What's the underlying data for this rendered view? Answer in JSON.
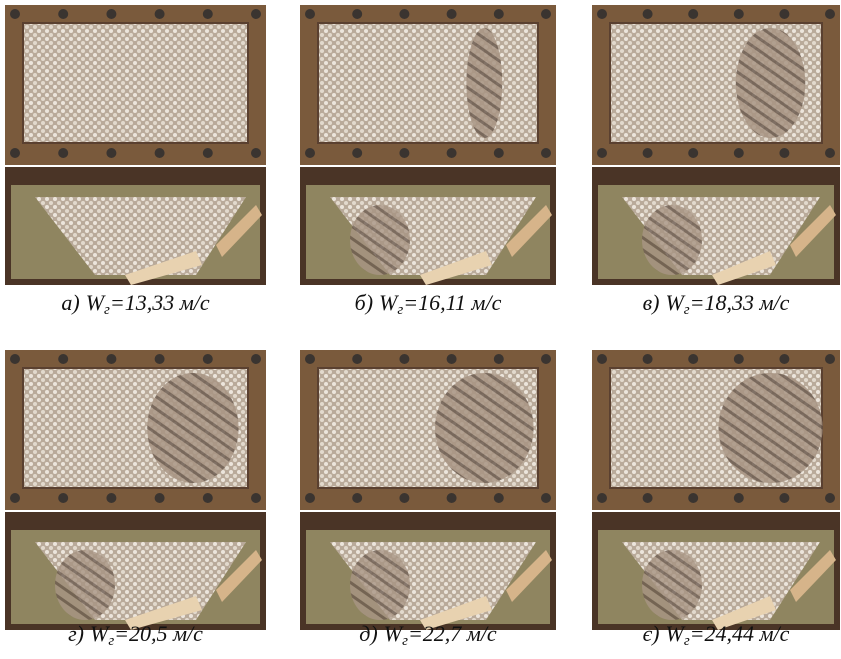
{
  "panels": [
    {
      "letter": "а)",
      "symbol": "W",
      "subscript": "г",
      "value": "=13,33 м/с"
    },
    {
      "letter": "б)",
      "symbol": "W",
      "subscript": "г",
      "value": "=16,11 м/с"
    },
    {
      "letter": "в)",
      "symbol": "W",
      "subscript": "г",
      "value": "=18,33 м/с"
    },
    {
      "letter": "г)",
      "symbol": "W",
      "subscript": "г",
      "value": "=20,5 м/с"
    },
    {
      "letter": "д)",
      "symbol": "W",
      "subscript": "г",
      "value": "=22,7 м/с"
    },
    {
      "letter": "є)",
      "symbol": "W",
      "subscript": "г",
      "value": "=24,44 м/с"
    }
  ]
}
